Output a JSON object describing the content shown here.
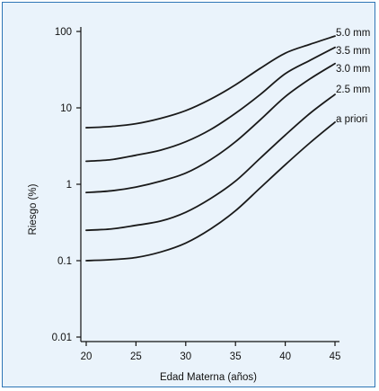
{
  "chart_data": {
    "type": "line",
    "xlabel": "Edad Materna (años)",
    "ylabel": "Riesgo (%)",
    "xlim": [
      19.5,
      45.5
    ],
    "ylim": [
      0.01,
      100
    ],
    "yscale": "log",
    "x_ticks": [
      20,
      25,
      30,
      35,
      40,
      45
    ],
    "x_tick_labels": [
      "20",
      "25",
      "30",
      "35",
      "40",
      "45"
    ],
    "y_ticks": [
      0.01,
      0.1,
      1,
      10,
      100
    ],
    "y_tick_labels": [
      "0.01",
      "0.1",
      "1",
      "10",
      "100"
    ],
    "grid": false,
    "legend": "inline labels at right end of curves",
    "line_color": "#1a1a1a",
    "background_color": "#eaf3fb",
    "frame_color": "#2e75b6",
    "x": [
      20,
      22.5,
      25,
      27.5,
      30,
      32.5,
      35,
      37.5,
      40,
      42.5,
      45
    ],
    "series": [
      {
        "name": "5.0 mm",
        "values": [
          5.5,
          5.7,
          6.2,
          7.3,
          9.2,
          13,
          20,
          33,
          52,
          68,
          87
        ]
      },
      {
        "name": "3.5 mm",
        "values": [
          2.0,
          2.1,
          2.4,
          2.8,
          3.6,
          5.2,
          8.5,
          15,
          28,
          42,
          62
        ]
      },
      {
        "name": "3.0 mm",
        "values": [
          0.78,
          0.82,
          0.92,
          1.1,
          1.4,
          2.1,
          3.6,
          7.0,
          14,
          24,
          38
        ]
      },
      {
        "name": "2.5 mm",
        "values": [
          0.25,
          0.26,
          0.29,
          0.33,
          0.43,
          0.65,
          1.1,
          2.2,
          4.4,
          8.5,
          15
        ]
      },
      {
        "name": "a priori",
        "values": [
          0.1,
          0.103,
          0.11,
          0.13,
          0.17,
          0.26,
          0.45,
          0.9,
          1.8,
          3.5,
          6.5
        ]
      }
    ]
  }
}
